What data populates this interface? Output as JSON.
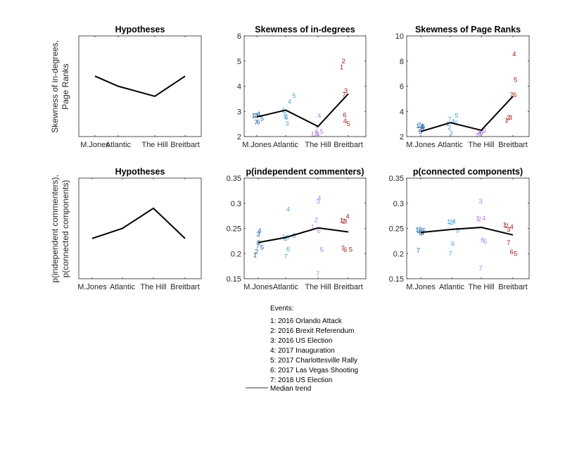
{
  "figure": {
    "ylabels": {
      "top": [
        "Skewness of in-degrees,",
        "Page Ranks"
      ],
      "bottom": [
        "p(independent commenters),",
        "p(connected components)"
      ]
    },
    "outlets": [
      "M.Jones",
      "Atlantic",
      "The Hill",
      "Breitbart"
    ],
    "outlet_colors": [
      "#1f5fa8",
      "#4fa8dc",
      "#b07fdd",
      "#a31c1c"
    ]
  },
  "legend": {
    "header": "Events:",
    "items": [
      "1: 2016 Orlando Attack",
      "2: 2016 Brexit Referendum",
      "3: 2016 US Election",
      "4: 2017 Inauguration",
      "5: 2017 Charlottesville Rally",
      "6: 2017 Las Vegas Shooting",
      "7: 2018 US Election"
    ],
    "line_label": "Median trend"
  },
  "chart_data": [
    {
      "id": "hyp-top",
      "type": "line",
      "title": "Hypotheses",
      "categories": [
        "M.Jones",
        "Atlantic",
        "The Hill",
        "Breitbart"
      ],
      "median": [
        2,
        1.5,
        1,
        2
      ],
      "ylim": [
        -1,
        4
      ],
      "yticks": [],
      "points": []
    },
    {
      "id": "skew-indeg",
      "type": "scatter",
      "title": "Skewness of in-degrees",
      "categories": [
        "M.Jones",
        "Atlantic",
        "The Hill",
        "Breitbart"
      ],
      "median": [
        2.78,
        3.05,
        2.4,
        3.7
      ],
      "ylim": [
        2,
        6
      ],
      "yticks": [
        2,
        3,
        4,
        5,
        6
      ],
      "points": [
        [
          {
            "e": "1",
            "x": 0.88,
            "y": 2.82
          },
          {
            "e": "2",
            "x": 0.94,
            "y": 2.82
          },
          {
            "e": "3",
            "x": 1.0,
            "y": 2.84
          },
          {
            "e": "4",
            "x": 1.06,
            "y": 2.9
          },
          {
            "e": "5",
            "x": 1.18,
            "y": 2.72
          },
          {
            "e": "6",
            "x": 1.05,
            "y": 2.58
          },
          {
            "e": "7",
            "x": 0.97,
            "y": 2.56
          }
        ],
        [
          {
            "e": "1",
            "x": 1.92,
            "y": 3.05
          },
          {
            "e": "2",
            "x": 2.0,
            "y": 2.8
          },
          {
            "e": "3",
            "x": 2.04,
            "y": 2.52
          },
          {
            "e": "4",
            "x": 2.12,
            "y": 3.38
          },
          {
            "e": "5",
            "x": 2.26,
            "y": 3.62
          },
          {
            "e": "6",
            "x": 2.02,
            "y": 2.75
          },
          {
            "e": "7",
            "x": 1.96,
            "y": 2.88
          }
        ],
        [
          {
            "e": "1",
            "x": 2.83,
            "y": 2.1
          },
          {
            "e": "2",
            "x": 2.96,
            "y": 2.3
          },
          {
            "e": "3",
            "x": 2.97,
            "y": 2.08
          },
          {
            "e": "4",
            "x": 3.04,
            "y": 2.82
          },
          {
            "e": "5",
            "x": 3.12,
            "y": 2.2
          },
          {
            "e": "6",
            "x": 2.99,
            "y": 2.1
          },
          {
            "e": "7",
            "x": 2.92,
            "y": 2.1
          }
        ],
        [
          {
            "e": "1",
            "x": 3.78,
            "y": 4.76
          },
          {
            "e": "2",
            "x": 3.84,
            "y": 5.0
          },
          {
            "e": "3",
            "x": 3.92,
            "y": 3.82
          },
          {
            "e": "4",
            "x": 3.89,
            "y": 2.62
          },
          {
            "e": "5",
            "x": 4.0,
            "y": 2.5
          },
          {
            "e": "6",
            "x": 3.88,
            "y": 2.86
          },
          {
            "e": "7",
            "x": 3.86,
            "y": 3.67
          }
        ]
      ]
    },
    {
      "id": "skew-pagerank",
      "type": "scatter",
      "title": "Skewness of Page Ranks",
      "categories": [
        "M.Jones",
        "Atlantic",
        "The Hill",
        "Breitbart"
      ],
      "median": [
        2.4,
        3.1,
        2.5,
        5.2
      ],
      "ylim": [
        2,
        10
      ],
      "yticks": [
        2,
        4,
        6,
        8,
        10
      ],
      "points": [
        [
          {
            "e": "1",
            "x": 0.9,
            "y": 2.84
          },
          {
            "e": "2",
            "x": 0.97,
            "y": 2.55
          },
          {
            "e": "3",
            "x": 0.99,
            "y": 2.38
          },
          {
            "e": "4",
            "x": 1.03,
            "y": 2.78
          },
          {
            "e": "5",
            "x": 1.08,
            "y": 2.8
          },
          {
            "e": "6",
            "x": 1.07,
            "y": 2.74
          },
          {
            "e": "7",
            "x": 0.96,
            "y": 2.9
          }
        ],
        [
          {
            "e": "1",
            "x": 1.91,
            "y": 3.0
          },
          {
            "e": "2",
            "x": 1.97,
            "y": 2.72
          },
          {
            "e": "3",
            "x": 2.02,
            "y": 2.28
          },
          {
            "e": "4",
            "x": 2.08,
            "y": 3.2
          },
          {
            "e": "5",
            "x": 2.2,
            "y": 3.66
          },
          {
            "e": "6",
            "x": 2.18,
            "y": 3.1
          },
          {
            "e": "7",
            "x": 1.98,
            "y": 3.38
          }
        ],
        [
          {
            "e": "1",
            "x": 2.86,
            "y": 2.1
          },
          {
            "e": "2",
            "x": 2.92,
            "y": 2.34
          },
          {
            "e": "3",
            "x": 2.96,
            "y": 2.22
          },
          {
            "e": "4",
            "x": 3.03,
            "y": 2.38
          },
          {
            "e": "5",
            "x": 3.1,
            "y": 2.48
          },
          {
            "e": "6",
            "x": 3.0,
            "y": 2.32
          },
          {
            "e": "7",
            "x": 2.94,
            "y": 2.36
          }
        ],
        [
          {
            "e": "1",
            "x": 3.8,
            "y": 3.28
          },
          {
            "e": "2",
            "x": 3.86,
            "y": 3.48
          },
          {
            "e": "3",
            "x": 3.92,
            "y": 3.5
          },
          {
            "e": "4",
            "x": 4.04,
            "y": 8.55
          },
          {
            "e": "5",
            "x": 4.08,
            "y": 6.5
          },
          {
            "e": "6",
            "x": 4.06,
            "y": 5.3
          },
          {
            "e": "7",
            "x": 3.96,
            "y": 5.3
          }
        ]
      ]
    },
    {
      "id": "hyp-bottom",
      "type": "line",
      "title": "Hypotheses",
      "categories": [
        "M.Jones",
        "Atlantic",
        "The Hill",
        "Breitbart"
      ],
      "median": [
        1,
        1.5,
        2.5,
        1
      ],
      "ylim": [
        -1,
        4
      ],
      "yticks": [],
      "points": []
    },
    {
      "id": "p-indep",
      "type": "scatter",
      "title": "p(independent commenters)",
      "categories": [
        "M.Jones",
        "Atlantic",
        "The Hill",
        "Breitbart"
      ],
      "median": [
        0.222,
        0.232,
        0.251,
        0.243
      ],
      "ylim": [
        0.15,
        0.35
      ],
      "yticks": [
        0.15,
        0.2,
        0.25,
        0.3,
        0.35
      ],
      "points": [
        [
          {
            "e": "1",
            "x": 0.88,
            "y": 0.197
          },
          {
            "e": "2",
            "x": 0.94,
            "y": 0.204
          },
          {
            "e": "3",
            "x": 1.0,
            "y": 0.238
          },
          {
            "e": "4",
            "x": 1.05,
            "y": 0.245
          },
          {
            "e": "5",
            "x": 1.14,
            "y": 0.212
          },
          {
            "e": "6",
            "x": 1.02,
            "y": 0.222
          },
          {
            "e": "7",
            "x": 0.98,
            "y": 0.214
          }
        ],
        [
          {
            "e": "1",
            "x": 1.92,
            "y": 0.233
          },
          {
            "e": "2",
            "x": 1.99,
            "y": 0.23
          },
          {
            "e": "3",
            "x": 2.06,
            "y": 0.232
          },
          {
            "e": "4",
            "x": 2.08,
            "y": 0.288
          },
          {
            "e": "5",
            "x": 2.26,
            "y": 0.235
          },
          {
            "e": "6",
            "x": 2.08,
            "y": 0.209
          },
          {
            "e": "7",
            "x": 2.0,
            "y": 0.194
          }
        ],
        [
          {
            "e": "1",
            "x": 2.84,
            "y": 0.253
          },
          {
            "e": "2",
            "x": 2.94,
            "y": 0.267
          },
          {
            "e": "3",
            "x": 3.0,
            "y": 0.303
          },
          {
            "e": "4",
            "x": 3.04,
            "y": 0.31
          },
          {
            "e": "5",
            "x": 3.12,
            "y": 0.207
          },
          {
            "e": "6",
            "x": 3.03,
            "y": 0.245
          },
          {
            "e": "7",
            "x": 2.99,
            "y": 0.16
          }
        ],
        [
          {
            "e": "1",
            "x": 3.78,
            "y": 0.266
          },
          {
            "e": "2",
            "x": 3.84,
            "y": 0.264
          },
          {
            "e": "3",
            "x": 3.9,
            "y": 0.264
          },
          {
            "e": "4",
            "x": 3.98,
            "y": 0.274
          },
          {
            "e": "5",
            "x": 4.08,
            "y": 0.208
          },
          {
            "e": "6",
            "x": 3.9,
            "y": 0.207
          },
          {
            "e": "7",
            "x": 3.82,
            "y": 0.21
          }
        ]
      ]
    },
    {
      "id": "p-conn",
      "type": "scatter",
      "title": "p(connected components)",
      "categories": [
        "M.Jones",
        "Atlantic",
        "The Hill",
        "Breitbart"
      ],
      "median": [
        0.242,
        0.248,
        0.252,
        0.237
      ],
      "ylim": [
        0.15,
        0.35
      ],
      "yticks": [
        0.15,
        0.2,
        0.25,
        0.3,
        0.35
      ],
      "points": [
        [
          {
            "e": "1",
            "x": 0.88,
            "y": 0.247
          },
          {
            "e": "2",
            "x": 0.94,
            "y": 0.245
          },
          {
            "e": "3",
            "x": 0.98,
            "y": 0.248
          },
          {
            "e": "4",
            "x": 1.06,
            "y": 0.241
          },
          {
            "e": "5",
            "x": 1.1,
            "y": 0.246
          },
          {
            "e": "6",
            "x": 1.0,
            "y": 0.24
          },
          {
            "e": "7",
            "x": 0.92,
            "y": 0.206
          }
        ],
        [
          {
            "e": "1",
            "x": 1.9,
            "y": 0.263
          },
          {
            "e": "2",
            "x": 1.96,
            "y": 0.262
          },
          {
            "e": "3",
            "x": 2.02,
            "y": 0.262
          },
          {
            "e": "4",
            "x": 2.08,
            "y": 0.264
          },
          {
            "e": "5",
            "x": 2.2,
            "y": 0.246
          },
          {
            "e": "6",
            "x": 2.04,
            "y": 0.219
          },
          {
            "e": "7",
            "x": 1.96,
            "y": 0.2
          }
        ],
        [
          {
            "e": "1",
            "x": 2.88,
            "y": 0.27
          },
          {
            "e": "2",
            "x": 2.94,
            "y": 0.268
          },
          {
            "e": "3",
            "x": 2.98,
            "y": 0.304
          },
          {
            "e": "4",
            "x": 3.08,
            "y": 0.27
          },
          {
            "e": "5",
            "x": 3.12,
            "y": 0.224
          },
          {
            "e": "6",
            "x": 3.04,
            "y": 0.227
          },
          {
            "e": "7",
            "x": 2.98,
            "y": 0.171
          }
        ],
        [
          {
            "e": "1",
            "x": 3.74,
            "y": 0.257
          },
          {
            "e": "2",
            "x": 3.8,
            "y": 0.255
          },
          {
            "e": "3",
            "x": 3.86,
            "y": 0.248
          },
          {
            "e": "4",
            "x": 3.96,
            "y": 0.253
          },
          {
            "e": "5",
            "x": 4.08,
            "y": 0.2
          },
          {
            "e": "6",
            "x": 3.96,
            "y": 0.203
          },
          {
            "e": "7",
            "x": 3.86,
            "y": 0.221
          }
        ]
      ]
    }
  ]
}
